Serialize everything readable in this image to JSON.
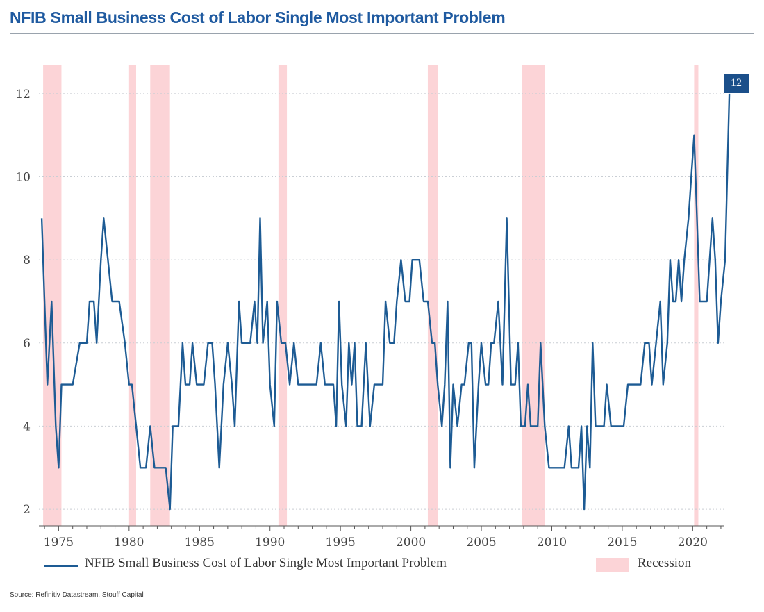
{
  "title": "NFIB Small Business Cost of Labor Single Most Important Problem",
  "source": "Source: Refinitiv Datastream, Stouff Capital",
  "legend": {
    "series_label": "NFIB Small Business Cost of Labor Single Most Important Problem",
    "recession_label": "Recession"
  },
  "last_value_label": "12",
  "colors": {
    "series": "#1d5b94",
    "recession": "#fcd4d7",
    "title": "#1f5aa0",
    "badge": "#1b4f8a"
  },
  "chart_data": {
    "type": "line",
    "title": "NFIB Small Business Cost of Labor Single Most Important Problem",
    "xlabel": "",
    "ylabel": "",
    "xlim": [
      1973.6,
      2022.2
    ],
    "ylim": [
      1.6,
      12.7
    ],
    "x_ticks": [
      1975,
      1980,
      1985,
      1990,
      1995,
      2000,
      2005,
      2010,
      2015,
      2020
    ],
    "y_ticks": [
      2,
      4,
      6,
      8,
      10,
      12
    ],
    "grid": "horizontal",
    "legend_position": "bottom",
    "recessions": [
      [
        1973.9,
        1975.2
      ],
      [
        1980.0,
        1980.5
      ],
      [
        1981.5,
        1982.9
      ],
      [
        1990.6,
        1991.2
      ],
      [
        2001.2,
        2001.9
      ],
      [
        2007.9,
        2009.5
      ],
      [
        2020.1,
        2020.4
      ]
    ],
    "series": [
      {
        "name": "NFIB Small Business Cost of Labor Single Most Important Problem",
        "points": [
          [
            1973.8,
            9
          ],
          [
            1974.0,
            7
          ],
          [
            1974.2,
            5
          ],
          [
            1974.5,
            7
          ],
          [
            1974.8,
            4
          ],
          [
            1975.0,
            3
          ],
          [
            1975.2,
            5
          ],
          [
            1975.5,
            5
          ],
          [
            1976.0,
            5
          ],
          [
            1976.5,
            6
          ],
          [
            1977.0,
            6
          ],
          [
            1977.2,
            7
          ],
          [
            1977.5,
            7
          ],
          [
            1977.7,
            6
          ],
          [
            1978.0,
            8
          ],
          [
            1978.2,
            9
          ],
          [
            1978.5,
            8
          ],
          [
            1978.8,
            7
          ],
          [
            1979.0,
            7
          ],
          [
            1979.3,
            7
          ],
          [
            1979.7,
            6
          ],
          [
            1980.0,
            5
          ],
          [
            1980.2,
            5
          ],
          [
            1980.5,
            4
          ],
          [
            1980.8,
            3
          ],
          [
            1981.2,
            3
          ],
          [
            1981.5,
            4
          ],
          [
            1981.8,
            3
          ],
          [
            1982.3,
            3
          ],
          [
            1982.6,
            3
          ],
          [
            1982.9,
            2
          ],
          [
            1983.1,
            4
          ],
          [
            1983.5,
            4
          ],
          [
            1983.8,
            6
          ],
          [
            1984.0,
            5
          ],
          [
            1984.3,
            5
          ],
          [
            1984.5,
            6
          ],
          [
            1984.8,
            5
          ],
          [
            1985.0,
            5
          ],
          [
            1985.3,
            5
          ],
          [
            1985.6,
            6
          ],
          [
            1985.9,
            6
          ],
          [
            1986.1,
            5
          ],
          [
            1986.4,
            3
          ],
          [
            1986.7,
            5
          ],
          [
            1987.0,
            6
          ],
          [
            1987.3,
            5
          ],
          [
            1987.5,
            4
          ],
          [
            1987.8,
            7
          ],
          [
            1988.0,
            6
          ],
          [
            1988.3,
            6
          ],
          [
            1988.6,
            6
          ],
          [
            1988.9,
            7
          ],
          [
            1989.1,
            6
          ],
          [
            1989.3,
            9
          ],
          [
            1989.5,
            6
          ],
          [
            1989.8,
            7
          ],
          [
            1990.0,
            5
          ],
          [
            1990.3,
            4
          ],
          [
            1990.5,
            7
          ],
          [
            1990.8,
            6
          ],
          [
            1991.1,
            6
          ],
          [
            1991.4,
            5
          ],
          [
            1991.7,
            6
          ],
          [
            1992.0,
            5
          ],
          [
            1992.5,
            5
          ],
          [
            1993.0,
            5
          ],
          [
            1993.3,
            5
          ],
          [
            1993.6,
            6
          ],
          [
            1993.9,
            5
          ],
          [
            1994.2,
            5
          ],
          [
            1994.5,
            5
          ],
          [
            1994.7,
            4
          ],
          [
            1994.9,
            7
          ],
          [
            1995.1,
            5
          ],
          [
            1995.4,
            4
          ],
          [
            1995.6,
            6
          ],
          [
            1995.8,
            5
          ],
          [
            1996.0,
            6
          ],
          [
            1996.2,
            4
          ],
          [
            1996.5,
            4
          ],
          [
            1996.8,
            6
          ],
          [
            1997.1,
            4
          ],
          [
            1997.4,
            5
          ],
          [
            1997.7,
            5
          ],
          [
            1998.0,
            5
          ],
          [
            1998.2,
            7
          ],
          [
            1998.5,
            6
          ],
          [
            1998.8,
            6
          ],
          [
            1999.0,
            7
          ],
          [
            1999.3,
            8
          ],
          [
            1999.6,
            7
          ],
          [
            1999.9,
            7
          ],
          [
            2000.1,
            8
          ],
          [
            2000.4,
            8
          ],
          [
            2000.6,
            8
          ],
          [
            2000.9,
            7
          ],
          [
            2001.2,
            7
          ],
          [
            2001.5,
            6
          ],
          [
            2001.7,
            6
          ],
          [
            2001.9,
            5
          ],
          [
            2002.2,
            4
          ],
          [
            2002.4,
            5
          ],
          [
            2002.6,
            7
          ],
          [
            2002.8,
            3
          ],
          [
            2003.0,
            5
          ],
          [
            2003.3,
            4
          ],
          [
            2003.6,
            5
          ],
          [
            2003.8,
            5
          ],
          [
            2004.1,
            6
          ],
          [
            2004.3,
            6
          ],
          [
            2004.5,
            3
          ],
          [
            2004.8,
            5
          ],
          [
            2005.0,
            6
          ],
          [
            2005.3,
            5
          ],
          [
            2005.5,
            5
          ],
          [
            2005.7,
            6
          ],
          [
            2005.9,
            6
          ],
          [
            2006.2,
            7
          ],
          [
            2006.5,
            5
          ],
          [
            2006.8,
            9
          ],
          [
            2007.1,
            5
          ],
          [
            2007.4,
            5
          ],
          [
            2007.6,
            6
          ],
          [
            2007.8,
            4
          ],
          [
            2008.1,
            4
          ],
          [
            2008.3,
            5
          ],
          [
            2008.5,
            4
          ],
          [
            2008.8,
            4
          ],
          [
            2009.0,
            4
          ],
          [
            2009.2,
            6
          ],
          [
            2009.5,
            4
          ],
          [
            2009.8,
            3
          ],
          [
            2010.1,
            3
          ],
          [
            2010.4,
            3
          ],
          [
            2010.7,
            3
          ],
          [
            2010.9,
            3
          ],
          [
            2011.2,
            4
          ],
          [
            2011.4,
            3
          ],
          [
            2011.6,
            3
          ],
          [
            2011.9,
            3
          ],
          [
            2012.1,
            4
          ],
          [
            2012.3,
            2
          ],
          [
            2012.5,
            4
          ],
          [
            2012.7,
            3
          ],
          [
            2012.9,
            6
          ],
          [
            2013.1,
            4
          ],
          [
            2013.4,
            4
          ],
          [
            2013.7,
            4
          ],
          [
            2013.9,
            5
          ],
          [
            2014.2,
            4
          ],
          [
            2014.5,
            4
          ],
          [
            2014.8,
            4
          ],
          [
            2015.1,
            4
          ],
          [
            2015.4,
            5
          ],
          [
            2015.7,
            5
          ],
          [
            2016.0,
            5
          ],
          [
            2016.3,
            5
          ],
          [
            2016.6,
            6
          ],
          [
            2016.9,
            6
          ],
          [
            2017.1,
            5
          ],
          [
            2017.4,
            6
          ],
          [
            2017.7,
            7
          ],
          [
            2017.9,
            5
          ],
          [
            2018.2,
            6
          ],
          [
            2018.4,
            8
          ],
          [
            2018.6,
            7
          ],
          [
            2018.8,
            7
          ],
          [
            2019.0,
            8
          ],
          [
            2019.2,
            7
          ],
          [
            2019.4,
            8
          ],
          [
            2019.7,
            9
          ],
          [
            2019.9,
            10
          ],
          [
            2020.1,
            11
          ],
          [
            2020.3,
            9
          ],
          [
            2020.5,
            7
          ],
          [
            2020.7,
            7
          ],
          [
            2021.0,
            7
          ],
          [
            2021.2,
            8
          ],
          [
            2021.4,
            9
          ],
          [
            2021.6,
            8
          ],
          [
            2021.8,
            6
          ],
          [
            2022.0,
            7
          ],
          [
            2022.3,
            8
          ],
          [
            2022.6,
            12
          ]
        ]
      }
    ]
  }
}
